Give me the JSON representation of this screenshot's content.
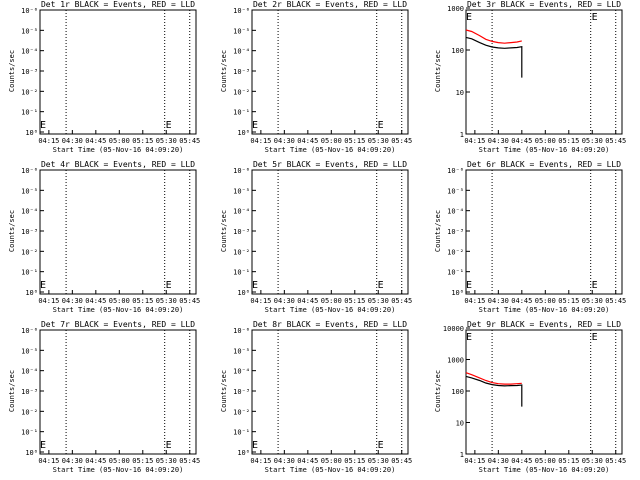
{
  "colors": {
    "events": "#000000",
    "lld": "#ff0000",
    "background": "#ffffff"
  },
  "common": {
    "xlabel": "Start Time (05-Nov-16 04:09:20)",
    "ylabel": "Counts/sec",
    "xticks": [
      "04:15",
      "04:30",
      "04:45",
      "05:00",
      "05:15",
      "05:30",
      "05:45"
    ],
    "marker_glyph": "E"
  },
  "chart_data": [
    {
      "type": "line",
      "title": "Det 1r BLACK = Events, RED = LLD",
      "ylabel": "Counts/sec",
      "yscale": "log",
      "ylim": [
        0.7,
        10000000
      ],
      "yticks": [
        "10⁰",
        "10⁻¹",
        "10⁻²",
        "10⁻³",
        "10⁻⁴",
        "10⁻⁵",
        "10⁻⁶"
      ],
      "xlim": [
        "04:09:20",
        "05:49:00"
      ],
      "vlines": [
        "04:26",
        "05:29",
        "05:45"
      ],
      "series": []
    },
    {
      "type": "line",
      "title": "Det 2r BLACK = Events, RED = LLD",
      "ylabel": "Counts/sec",
      "yscale": "log",
      "ylim": [
        0.7,
        10000000
      ],
      "yticks": [
        "10⁰",
        "10⁻¹",
        "10⁻²",
        "10⁻³",
        "10⁻⁴",
        "10⁻⁵",
        "10⁻⁶"
      ],
      "xlim": [
        "04:09:20",
        "05:49:00"
      ],
      "vlines": [
        "04:26",
        "05:29",
        "05:45"
      ],
      "series": []
    },
    {
      "type": "line",
      "title": "Det 3r BLACK = Events, RED = LLD",
      "ylabel": "Counts/sec",
      "yscale": "log",
      "ylim": [
        1,
        1000
      ],
      "yticks": [
        "1",
        "10",
        "100",
        "1000"
      ],
      "xlim": [
        "04:09:20",
        "05:49:00"
      ],
      "vlines": [
        "04:26",
        "05:29",
        "05:45"
      ],
      "series": [
        {
          "color": "#ff0000",
          "x": [
            "04:09:20",
            "04:13",
            "04:18",
            "04:22",
            "04:26",
            "04:30",
            "04:34",
            "04:38",
            "04:42",
            "04:45"
          ],
          "y": [
            300,
            275,
            220,
            180,
            160,
            150,
            145,
            150,
            155,
            165
          ]
        },
        {
          "color": "#000000",
          "x": [
            "04:09:20",
            "04:13",
            "04:18",
            "04:22",
            "04:26",
            "04:30",
            "04:34",
            "04:38",
            "04:42",
            "04:45",
            "04:45"
          ],
          "y": [
            200,
            185,
            150,
            130,
            118,
            112,
            110,
            112,
            115,
            120,
            22
          ]
        }
      ]
    },
    {
      "type": "line",
      "title": "Det 4r BLACK = Events, RED = LLD",
      "ylabel": "Counts/sec",
      "yscale": "log",
      "ylim": [
        0.7,
        10000000
      ],
      "yticks": [
        "10⁰",
        "10⁻¹",
        "10⁻²",
        "10⁻³",
        "10⁻⁴",
        "10⁻⁵",
        "10⁻⁶"
      ],
      "xlim": [
        "04:09:20",
        "05:49:00"
      ],
      "vlines": [
        "04:26",
        "05:29",
        "05:45"
      ],
      "series": []
    },
    {
      "type": "line",
      "title": "Det 5r BLACK = Events, RED = LLD",
      "ylabel": "Counts/sec",
      "yscale": "log",
      "ylim": [
        0.7,
        10000000
      ],
      "yticks": [
        "10⁰",
        "10⁻¹",
        "10⁻²",
        "10⁻³",
        "10⁻⁴",
        "10⁻⁵",
        "10⁻⁶"
      ],
      "xlim": [
        "04:09:20",
        "05:49:00"
      ],
      "vlines": [
        "04:26",
        "05:29",
        "05:45"
      ],
      "series": []
    },
    {
      "type": "line",
      "title": "Det 6r BLACK = Events, RED = LLD",
      "ylabel": "Counts/sec",
      "yscale": "log",
      "ylim": [
        0.7,
        10000000
      ],
      "yticks": [
        "10⁰",
        "10⁻¹",
        "10⁻²",
        "10⁻³",
        "10⁻⁴",
        "10⁻⁵",
        "10⁻⁶"
      ],
      "xlim": [
        "04:09:20",
        "05:49:00"
      ],
      "vlines": [
        "04:26",
        "05:29",
        "05:45"
      ],
      "series": []
    },
    {
      "type": "line",
      "title": "Det 7r BLACK = Events, RED = LLD",
      "ylabel": "Counts/sec",
      "yscale": "log",
      "ylim": [
        0.7,
        10000000
      ],
      "yticks": [
        "10⁰",
        "10⁻¹",
        "10⁻²",
        "10⁻³",
        "10⁻⁴",
        "10⁻⁵",
        "10⁻⁶"
      ],
      "xlim": [
        "04:09:20",
        "05:49:00"
      ],
      "vlines": [
        "04:26",
        "05:29",
        "05:45"
      ],
      "series": []
    },
    {
      "type": "line",
      "title": "Det 8r BLACK = Events, RED = LLD",
      "ylabel": "Counts/sec",
      "yscale": "log",
      "ylim": [
        0.7,
        10000000
      ],
      "yticks": [
        "10⁰",
        "10⁻¹",
        "10⁻²",
        "10⁻³",
        "10⁻⁴",
        "10⁻⁵",
        "10⁻⁶"
      ],
      "xlim": [
        "04:09:20",
        "05:49:00"
      ],
      "vlines": [
        "04:26",
        "05:29",
        "05:45"
      ],
      "series": []
    },
    {
      "type": "line",
      "title": "Det 9r BLACK = Events, RED = LLD",
      "ylabel": "Counts/sec",
      "yscale": "log",
      "ylim": [
        1,
        10000
      ],
      "yticks": [
        "1",
        "10",
        "100",
        "1000",
        "10000"
      ],
      "xlim": [
        "04:09:20",
        "05:49:00"
      ],
      "vlines": [
        "04:26",
        "05:29",
        "05:45"
      ],
      "series": [
        {
          "color": "#ff0000",
          "x": [
            "04:09:20",
            "04:13",
            "04:18",
            "04:22",
            "04:26",
            "04:30",
            "04:34",
            "04:38",
            "04:42",
            "04:45"
          ],
          "y": [
            380,
            330,
            260,
            215,
            185,
            170,
            165,
            165,
            170,
            175
          ]
        },
        {
          "color": "#000000",
          "x": [
            "04:09:20",
            "04:13",
            "04:18",
            "04:22",
            "04:26",
            "04:30",
            "04:34",
            "04:38",
            "04:42",
            "04:45",
            "04:45"
          ],
          "y": [
            290,
            260,
            215,
            180,
            160,
            150,
            145,
            148,
            150,
            155,
            32
          ]
        }
      ]
    }
  ]
}
